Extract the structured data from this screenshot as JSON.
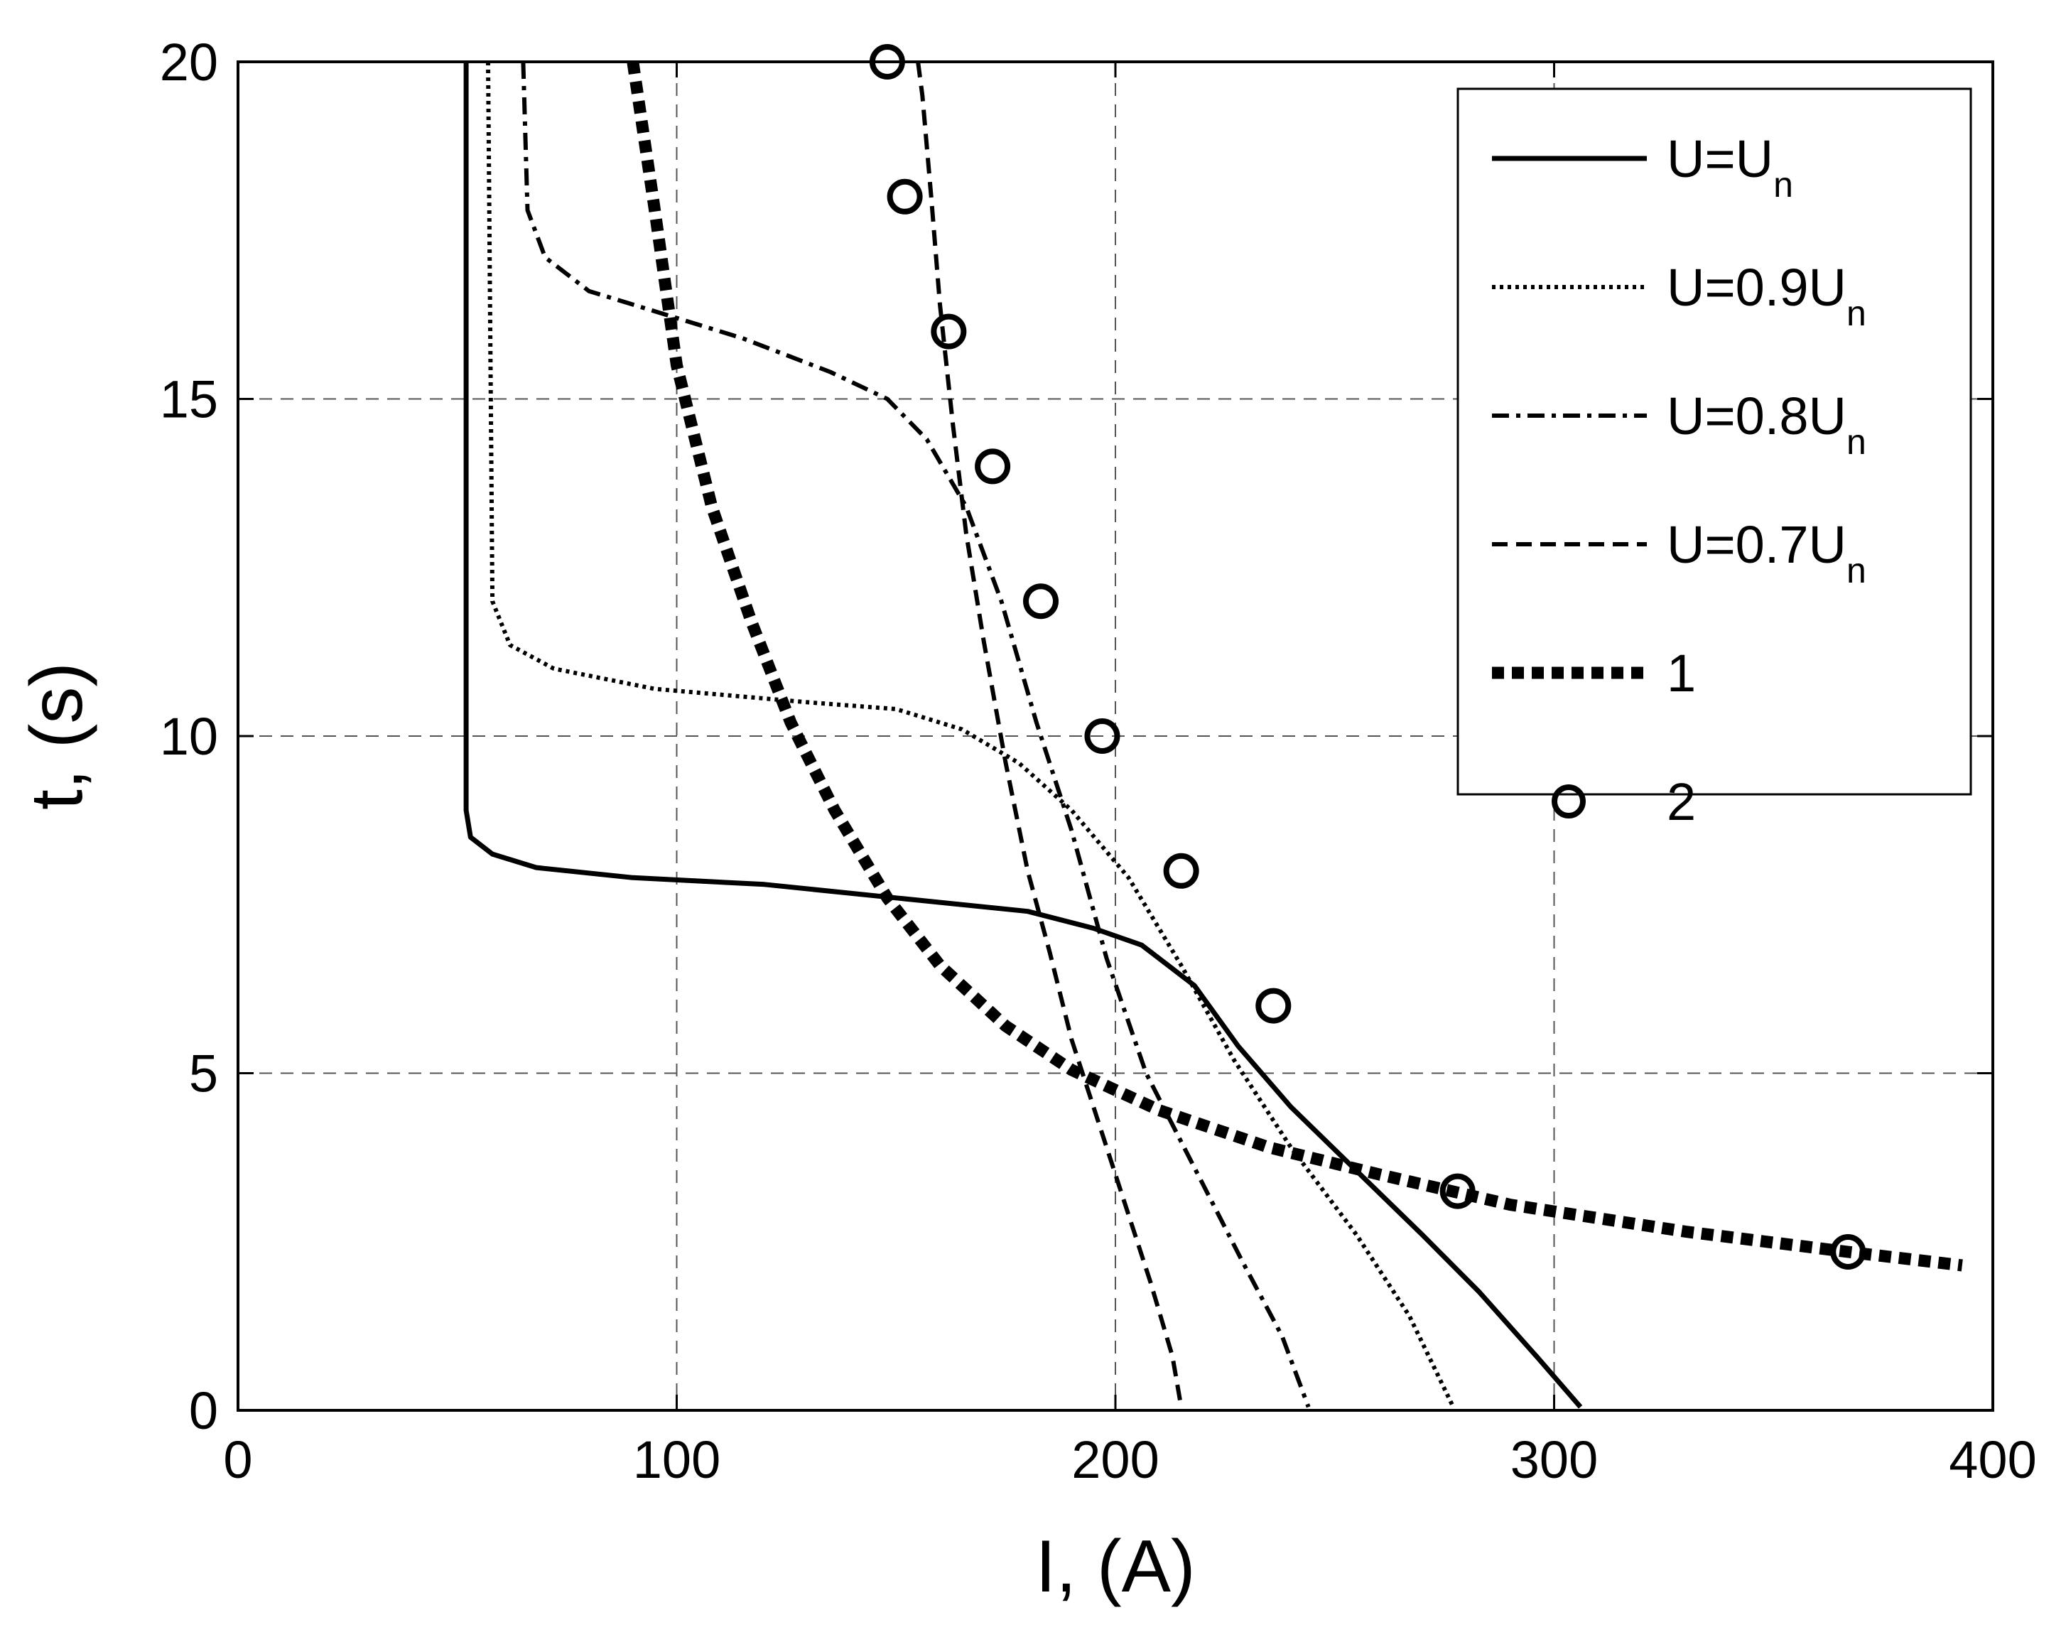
{
  "chart_data": {
    "type": "line",
    "xlabel": "I, (A)",
    "ylabel": "t, (s)",
    "xlim": [
      0,
      400
    ],
    "ylim": [
      0,
      20
    ],
    "xticks": [
      0,
      100,
      200,
      300,
      400
    ],
    "yticks": [
      0,
      5,
      10,
      15,
      20
    ],
    "grid": true,
    "legend_position": "top-right",
    "series": [
      {
        "name": "U=Un",
        "legend_main": "U=U",
        "legend_sub": "n",
        "style": "solid",
        "points": [
          [
            52,
            20
          ],
          [
            52,
            8.9
          ],
          [
            53,
            8.5
          ],
          [
            58,
            8.25
          ],
          [
            68,
            8.05
          ],
          [
            90,
            7.9
          ],
          [
            120,
            7.8
          ],
          [
            150,
            7.6
          ],
          [
            180,
            7.4
          ],
          [
            195,
            7.15
          ],
          [
            206,
            6.9
          ],
          [
            218,
            6.3
          ],
          [
            228,
            5.4
          ],
          [
            240,
            4.5
          ],
          [
            255,
            3.55
          ],
          [
            270,
            2.6
          ],
          [
            283,
            1.75
          ],
          [
            296,
            0.8
          ],
          [
            306,
            0.05
          ]
        ]
      },
      {
        "name": "U=0.9Un",
        "legend_main": "U=0.9U",
        "legend_sub": "n",
        "style": "dotted",
        "points": [
          [
            57,
            20
          ],
          [
            58,
            12
          ],
          [
            62,
            11.35
          ],
          [
            72,
            11.0
          ],
          [
            95,
            10.7
          ],
          [
            130,
            10.5
          ],
          [
            150,
            10.4
          ],
          [
            165,
            10.1
          ],
          [
            178,
            9.6
          ],
          [
            190,
            8.9
          ],
          [
            203,
            7.9
          ],
          [
            215,
            6.6
          ],
          [
            227,
            5.2
          ],
          [
            240,
            3.9
          ],
          [
            255,
            2.6
          ],
          [
            267,
            1.4
          ],
          [
            277,
            0.05
          ]
        ]
      },
      {
        "name": "U=0.8Un",
        "legend_main": "U=0.8U",
        "legend_sub": "n",
        "style": "dashdot",
        "points": [
          [
            65,
            20
          ],
          [
            66,
            17.8
          ],
          [
            70,
            17.1
          ],
          [
            80,
            16.6
          ],
          [
            95,
            16.3
          ],
          [
            115,
            15.9
          ],
          [
            135,
            15.4
          ],
          [
            148,
            15.0
          ],
          [
            157,
            14.4
          ],
          [
            166,
            13.4
          ],
          [
            174,
            12.0
          ],
          [
            182,
            10.2
          ],
          [
            190,
            8.6
          ],
          [
            198,
            6.7
          ],
          [
            207,
            5.0
          ],
          [
            218,
            3.6
          ],
          [
            229,
            2.2
          ],
          [
            238,
            1.1
          ],
          [
            244,
            0.05
          ]
        ]
      },
      {
        "name": "U=0.7Un",
        "legend_main": "U=0.7U",
        "legend_sub": "n",
        "style": "dashed",
        "points": [
          [
            155,
            20
          ],
          [
            156,
            19.5
          ],
          [
            158,
            18.0
          ],
          [
            160,
            16.4
          ],
          [
            163,
            14.6
          ],
          [
            166,
            13.0
          ],
          [
            170,
            11.4
          ],
          [
            175,
            9.6
          ],
          [
            180,
            8.0
          ],
          [
            185,
            6.8
          ],
          [
            190,
            5.5
          ],
          [
            196,
            4.3
          ],
          [
            202,
            3.1
          ],
          [
            208,
            1.9
          ],
          [
            213,
            0.8
          ],
          [
            215,
            0.05
          ]
        ]
      },
      {
        "name": "1",
        "legend_main": "1",
        "legend_sub": "",
        "style": "thick-dotted",
        "points": [
          [
            90,
            20
          ],
          [
            95,
            17.8
          ],
          [
            100,
            15.5
          ],
          [
            108,
            13.4
          ],
          [
            117,
            11.7
          ],
          [
            126,
            10.2
          ],
          [
            136,
            8.9
          ],
          [
            148,
            7.6
          ],
          [
            160,
            6.6
          ],
          [
            175,
            5.7
          ],
          [
            190,
            5.05
          ],
          [
            210,
            4.45
          ],
          [
            235,
            3.9
          ],
          [
            260,
            3.5
          ],
          [
            290,
            3.05
          ],
          [
            330,
            2.65
          ],
          [
            367,
            2.35
          ],
          [
            393,
            2.15
          ]
        ]
      },
      {
        "name": "2",
        "legend_main": "2",
        "legend_sub": "",
        "style": "circles",
        "points": [
          [
            148,
            20
          ],
          [
            152,
            18
          ],
          [
            162,
            16
          ],
          [
            172,
            14
          ],
          [
            183,
            12
          ],
          [
            197,
            10
          ],
          [
            215,
            8
          ],
          [
            236,
            6
          ],
          [
            278,
            3.25
          ],
          [
            367,
            2.35
          ]
        ]
      }
    ]
  }
}
